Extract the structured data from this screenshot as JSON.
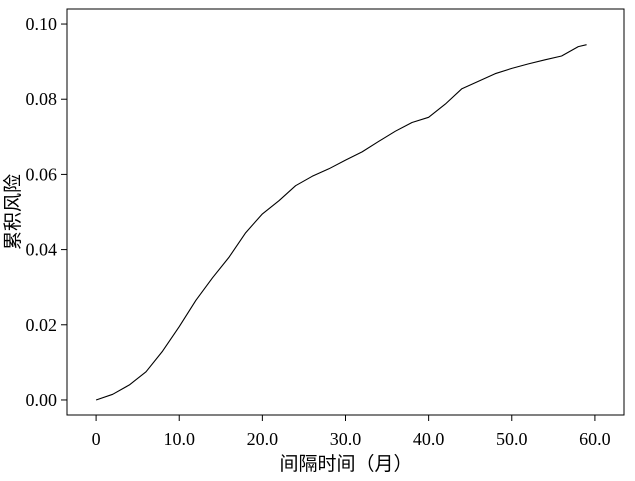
{
  "chart_data": {
    "type": "line",
    "title": "",
    "xlabel": "间隔时间（月）",
    "ylabel": "累积风险",
    "xlim": [
      -3.5,
      63.5
    ],
    "ylim": [
      -0.004,
      0.104
    ],
    "x_ticks": [
      0,
      10,
      20,
      30,
      40,
      50,
      60
    ],
    "x_tick_labels": [
      "0",
      "10.0",
      "20.0",
      "30.0",
      "40.0",
      "50.0",
      "60.0"
    ],
    "y_ticks": [
      0.0,
      0.02,
      0.04,
      0.06,
      0.08,
      0.1
    ],
    "y_tick_labels": [
      "0.00",
      "0.02",
      "0.04",
      "0.06",
      "0.08",
      "0.10"
    ],
    "grid": false,
    "legend": "none",
    "line_color": "#000000",
    "series": [
      {
        "x": [
          0,
          2,
          4,
          6,
          8,
          10,
          12,
          14,
          16,
          18,
          20,
          22,
          24,
          26,
          28,
          30,
          32,
          34,
          36,
          38,
          40,
          42,
          44,
          46,
          48,
          50,
          52,
          54,
          56,
          58,
          59
        ],
        "values": [
          0.0,
          0.0015,
          0.004,
          0.0075,
          0.013,
          0.0195,
          0.0265,
          0.0325,
          0.038,
          0.0445,
          0.0495,
          0.053,
          0.057,
          0.0595,
          0.0615,
          0.0638,
          0.066,
          0.0688,
          0.0715,
          0.0738,
          0.0752,
          0.0787,
          0.0828,
          0.0848,
          0.0868,
          0.0882,
          0.0894,
          0.0905,
          0.0915,
          0.094,
          0.0945
        ]
      }
    ]
  }
}
